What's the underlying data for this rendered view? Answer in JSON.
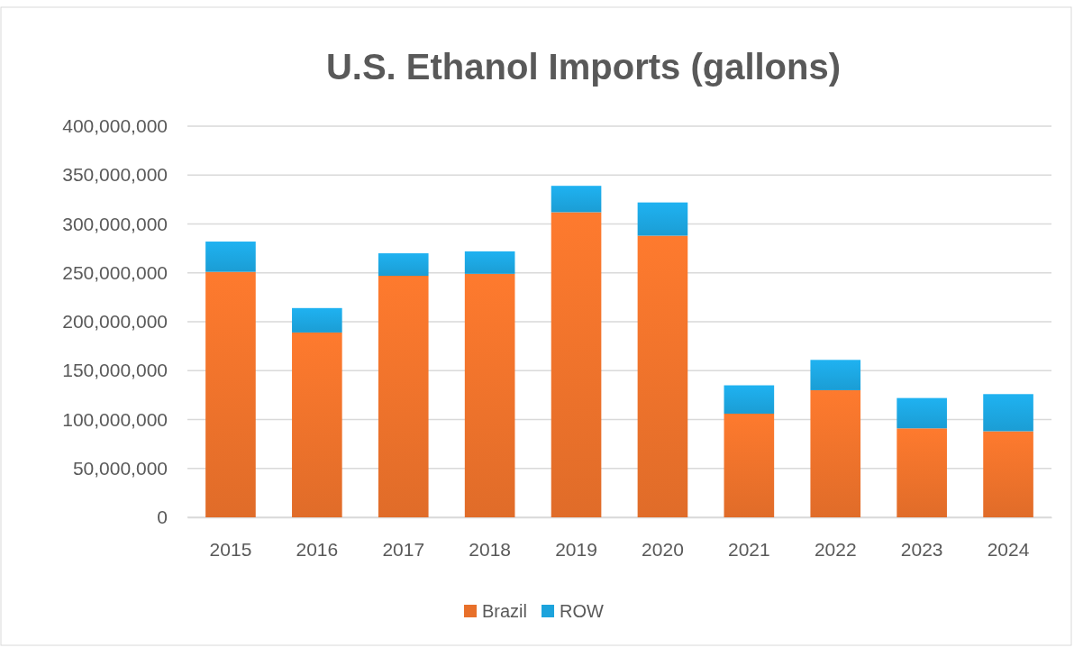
{
  "chart_data": {
    "type": "bar",
    "title": "U.S. Ethanol Imports (gallons)",
    "categories": [
      "2015",
      "2016",
      "2017",
      "2018",
      "2019",
      "2020",
      "2021",
      "2022",
      "2023",
      "2024"
    ],
    "stacked": true,
    "series": [
      {
        "name": "Brazil",
        "color": "#e8702a",
        "values": [
          251000000,
          189000000,
          247000000,
          249000000,
          312000000,
          288000000,
          106000000,
          130000000,
          91000000,
          88000000
        ]
      },
      {
        "name": "ROW",
        "color": "#1ca3dc",
        "values": [
          31000000,
          25000000,
          23000000,
          23000000,
          27000000,
          34000000,
          29000000,
          31000000,
          31000000,
          38000000
        ]
      }
    ],
    "ylim": [
      0,
      400000000
    ],
    "yticks": [
      {
        "value": 0,
        "label": "0"
      },
      {
        "value": 50000000,
        "label": "50,000,000"
      },
      {
        "value": 100000000,
        "label": "100,000,000"
      },
      {
        "value": 150000000,
        "label": "150,000,000"
      },
      {
        "value": 200000000,
        "label": "200,000,000"
      },
      {
        "value": 250000000,
        "label": "250,000,000"
      },
      {
        "value": 300000000,
        "label": "300,000,000"
      },
      {
        "value": 350000000,
        "label": "350,000,000"
      },
      {
        "value": 400000000,
        "label": "400,000,000"
      }
    ],
    "grid": "y",
    "legend": "bottom"
  }
}
